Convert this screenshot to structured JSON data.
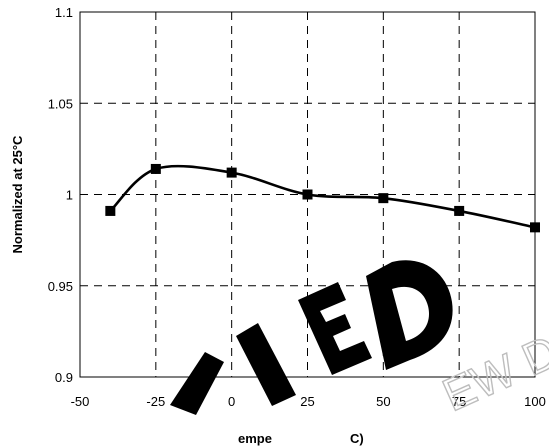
{
  "chart_data": {
    "type": "line",
    "title": "",
    "ylabel": "Normalized at 25°C",
    "xlabel_partial": "empe",
    "xlabel_partial_2": "C)",
    "xlim": [
      -50,
      100
    ],
    "ylim": [
      0.9,
      1.1
    ],
    "x_ticks": [
      "-50",
      "-25",
      "0",
      "25",
      "50",
      "75",
      "100"
    ],
    "y_ticks": [
      "1.1",
      "1.05",
      "1",
      "0.95",
      "0.9"
    ],
    "grid": true,
    "series": [
      {
        "x": [
          -40,
          -25,
          0,
          25,
          50,
          75,
          100
        ],
        "y": [
          0.991,
          1.014,
          1.012,
          1.0,
          0.998,
          0.991,
          0.982
        ]
      }
    ]
  },
  "watermark": {
    "text_main": "LIED",
    "text_secondary": "EW DE"
  }
}
